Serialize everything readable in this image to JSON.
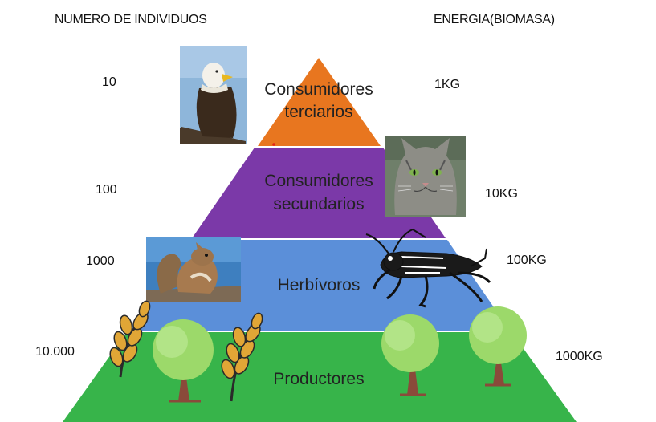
{
  "headers": {
    "individuals": "NUMERO DE INDIVIDUOS",
    "energy": "ENERGIA(BIOMASA)"
  },
  "levels": [
    {
      "name_line1": "Consumidores",
      "name_line2": "terciarios",
      "individuals": "10",
      "energy": "1KG",
      "color": "#e8761f",
      "image": "eagle"
    },
    {
      "name_line1": "Consumidores",
      "name_line2": "secundarios",
      "individuals": "100",
      "energy": "10KG",
      "color": "#7b39a8",
      "image": "cat"
    },
    {
      "name_line1": "Herbívoros",
      "name_line2": "",
      "individuals": "1000",
      "energy": "100KG",
      "color": "#5b8fd9",
      "image": "squirrel-and-cricket"
    },
    {
      "name_line1": "Productores",
      "name_line2": "",
      "individuals": "10.000",
      "energy": "1000KG",
      "color": "#37b44a",
      "image": "wheat-and-trees"
    }
  ]
}
